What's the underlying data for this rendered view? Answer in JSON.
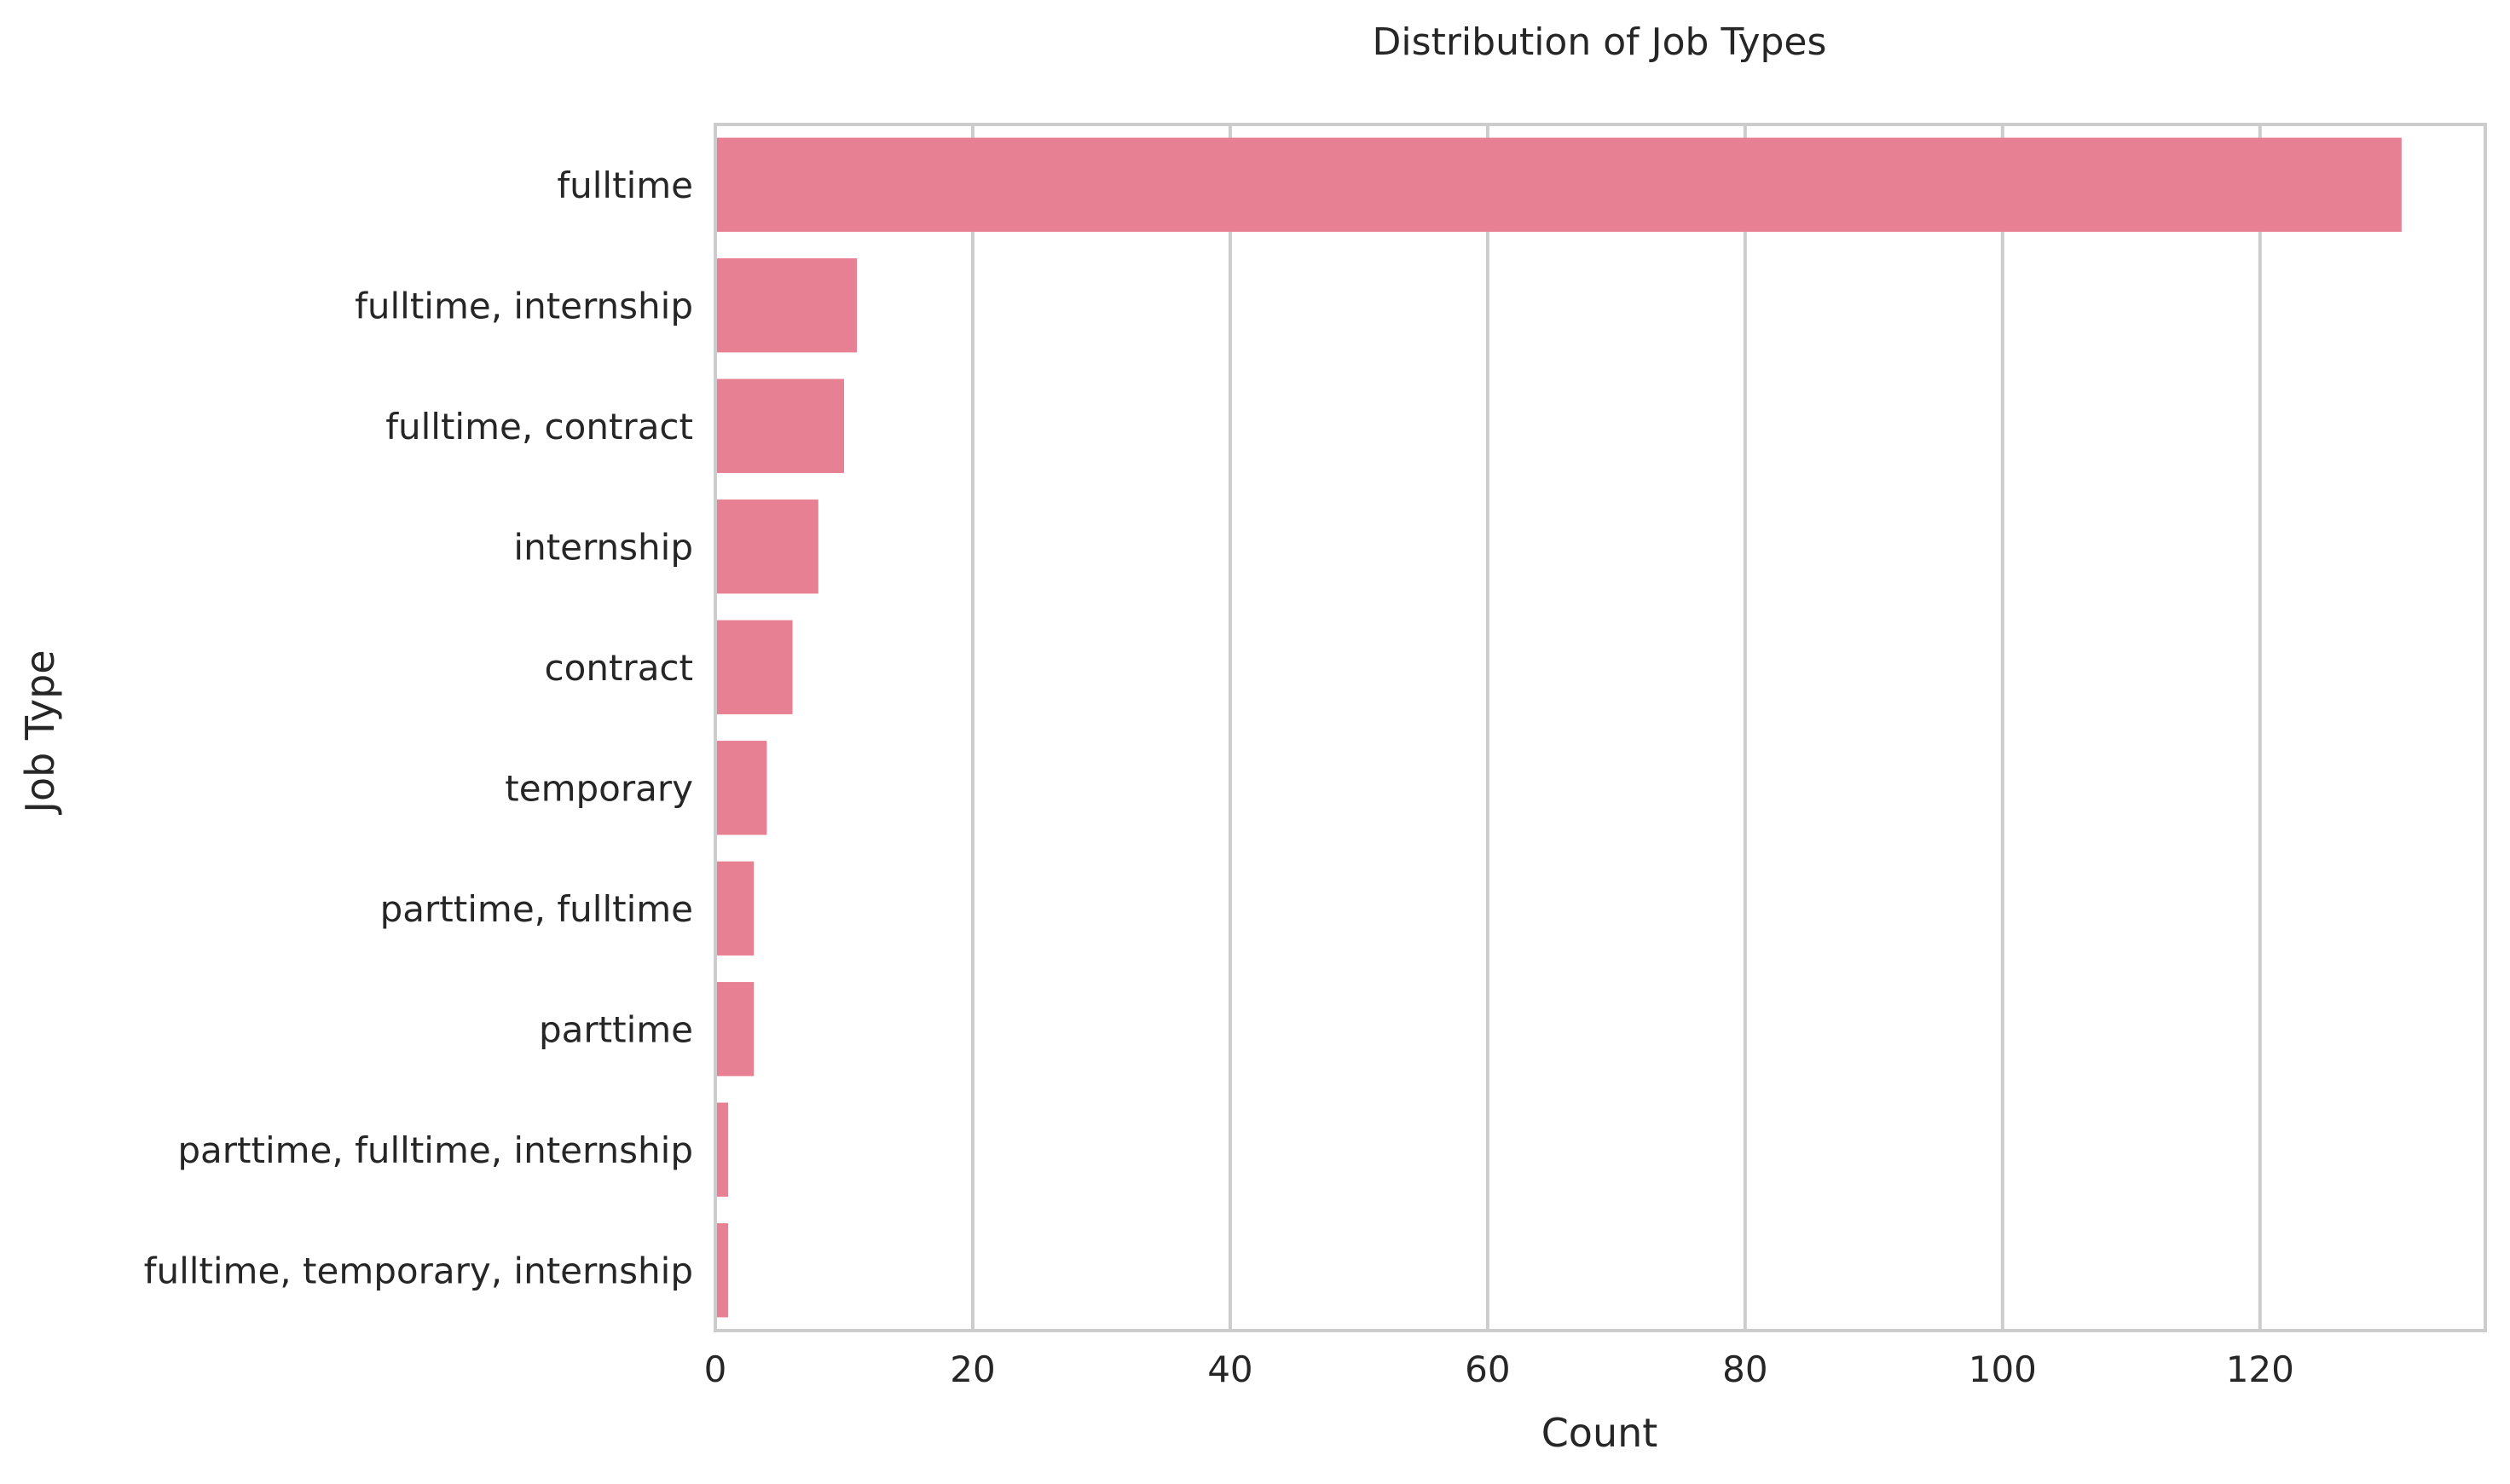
{
  "chart_data": {
    "type": "bar",
    "orientation": "horizontal",
    "title": "Distribution of Job Types",
    "xlabel": "Count",
    "ylabel": "Job Type",
    "xlim": [
      0,
      137.5
    ],
    "xticks": [
      0,
      20,
      40,
      60,
      80,
      100,
      120
    ],
    "grid": "x",
    "categories": [
      "fulltime",
      "fulltime, internship",
      "fulltime, contract",
      "internship",
      "contract",
      "temporary",
      "parttime, fulltime",
      "parttime",
      "parttime, fulltime, internship",
      "fulltime, temporary, internship"
    ],
    "values": [
      131,
      11,
      10,
      8,
      6,
      4,
      3,
      3,
      1,
      1
    ],
    "bar_color": "#e88093",
    "grid_color": "#cccccc",
    "text_color": "#262626"
  }
}
